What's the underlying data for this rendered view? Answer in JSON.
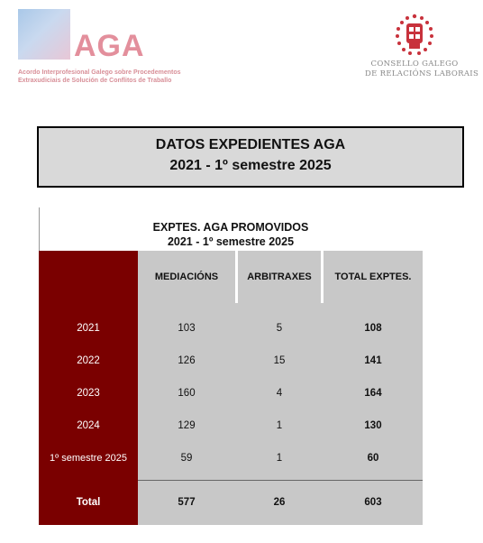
{
  "header": {
    "aga_logo_text": "AGA",
    "aga_desc_line1": "Acordo Interprofesional Galego sobre Procedementos",
    "aga_desc_line2": "Extraxudiciais de Solución de Conflitos de Traballo",
    "cgrl_line1": "CONSELLO GALEGO",
    "cgrl_line2": "DE RELACIÓNS LABORAIS"
  },
  "title": {
    "line1": "DATOS EXPEDIENTES AGA",
    "line2": "2021 -  1º semestre 2025"
  },
  "table": {
    "title_line1": "EXPTES. AGA PROMOVIDOS",
    "title_line2": "2021 -  1º semestre 2025",
    "columns": [
      "",
      "MEDIACIÓNS",
      "ARBITRAXES",
      "TOTAL EXPTES."
    ],
    "rows": [
      {
        "label": "2021",
        "mediacions": "103",
        "arbitraxes": "5",
        "total": "108"
      },
      {
        "label": "2022",
        "mediacions": "126",
        "arbitraxes": "15",
        "total": "141"
      },
      {
        "label": "2023",
        "mediacions": "160",
        "arbitraxes": "4",
        "total": "164"
      },
      {
        "label": "2024",
        "mediacions": "129",
        "arbitraxes": "1",
        "total": "130"
      },
      {
        "label": "1º semestre 2025",
        "mediacions": "59",
        "arbitraxes": "1",
        "total": "60"
      }
    ],
    "total_row": {
      "label": "Total",
      "mediacions": "577",
      "arbitraxes": "26",
      "total": "603"
    }
  },
  "colors": {
    "label_column": "#7a0000",
    "body_grey": "#c8c8c8",
    "title_box": "#d9d9d9",
    "aga_pink": "#e38f9c",
    "seal_red": "#c8323c"
  },
  "icons": [
    "aga-logo-icon",
    "consello-seal-icon"
  ]
}
